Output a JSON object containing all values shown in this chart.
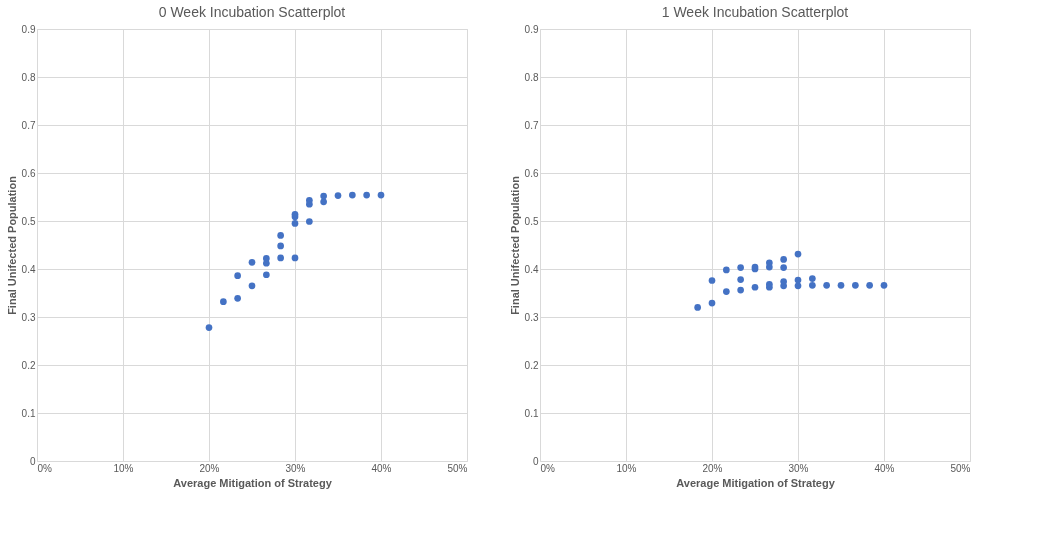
{
  "chart_data": [
    {
      "type": "scatter",
      "title": "0 Week Incubation Scatterplot",
      "xlabel": "Average Mitigation of Strategy",
      "ylabel": "Final Unifected Population",
      "grid": true,
      "marker": "circle",
      "xlim": [
        0,
        0.5
      ],
      "xticks": [
        {
          "value": 0,
          "label": "0%"
        },
        {
          "value": 0.1,
          "label": "10%"
        },
        {
          "value": 0.2,
          "label": "20%"
        },
        {
          "value": 0.3,
          "label": "30%"
        },
        {
          "value": 0.4,
          "label": "40%"
        },
        {
          "value": 0.5,
          "label": "50%"
        }
      ],
      "ylim": [
        0,
        0.9
      ],
      "yticks": [
        0,
        0.1,
        0.2,
        0.3,
        0.4,
        0.5,
        0.6,
        0.7,
        0.8,
        0.9
      ],
      "series": [
        {
          "color": "#4472c4",
          "x": [
            0.2,
            0.2167,
            0.2333,
            0.2333,
            0.25,
            0.25,
            0.2667,
            0.2667,
            0.2667,
            0.2833,
            0.2833,
            0.2833,
            0.3,
            0.3,
            0.3,
            0.3,
            0.3167,
            0.3167,
            0.3167,
            0.3333,
            0.3333,
            0.35,
            0.3667,
            0.3833,
            0.4
          ],
          "values": [
            0.278,
            0.332,
            0.339,
            0.386,
            0.365,
            0.414,
            0.388,
            0.412,
            0.422,
            0.423,
            0.448,
            0.47,
            0.423,
            0.495,
            0.509,
            0.514,
            0.499,
            0.535,
            0.543,
            0.54,
            0.552,
            0.553,
            0.554,
            0.554,
            0.554
          ]
        }
      ]
    },
    {
      "type": "scatter",
      "title": "1 Week Incubation Scatterplot",
      "xlabel": "Average Mitigation of Strategy",
      "ylabel": "Final Unifected Population",
      "grid": true,
      "marker": "circle",
      "xlim": [
        0,
        0.5
      ],
      "xticks": [
        {
          "value": 0,
          "label": "0%"
        },
        {
          "value": 0.1,
          "label": "10%"
        },
        {
          "value": 0.2,
          "label": "20%"
        },
        {
          "value": 0.3,
          "label": "30%"
        },
        {
          "value": 0.4,
          "label": "40%"
        },
        {
          "value": 0.5,
          "label": "50%"
        }
      ],
      "ylim": [
        0,
        0.9
      ],
      "yticks": [
        0,
        0.1,
        0.2,
        0.3,
        0.4,
        0.5,
        0.6,
        0.7,
        0.8,
        0.9
      ],
      "series": [
        {
          "color": "#4472c4",
          "x": [
            0.1833,
            0.2,
            0.2,
            0.2167,
            0.2167,
            0.2333,
            0.2333,
            0.2333,
            0.25,
            0.25,
            0.25,
            0.2667,
            0.2667,
            0.2667,
            0.2667,
            0.2833,
            0.2833,
            0.2833,
            0.2833,
            0.3,
            0.3,
            0.3,
            0.3167,
            0.3167,
            0.3333,
            0.35,
            0.3667,
            0.3833,
            0.4
          ],
          "values": [
            0.32,
            0.329,
            0.376,
            0.353,
            0.398,
            0.356,
            0.378,
            0.403,
            0.362,
            0.4,
            0.404,
            0.362,
            0.368,
            0.404,
            0.413,
            0.365,
            0.374,
            0.403,
            0.42,
            0.365,
            0.377,
            0.431,
            0.366,
            0.38,
            0.366,
            0.366,
            0.366,
            0.366,
            0.366
          ]
        }
      ]
    }
  ]
}
